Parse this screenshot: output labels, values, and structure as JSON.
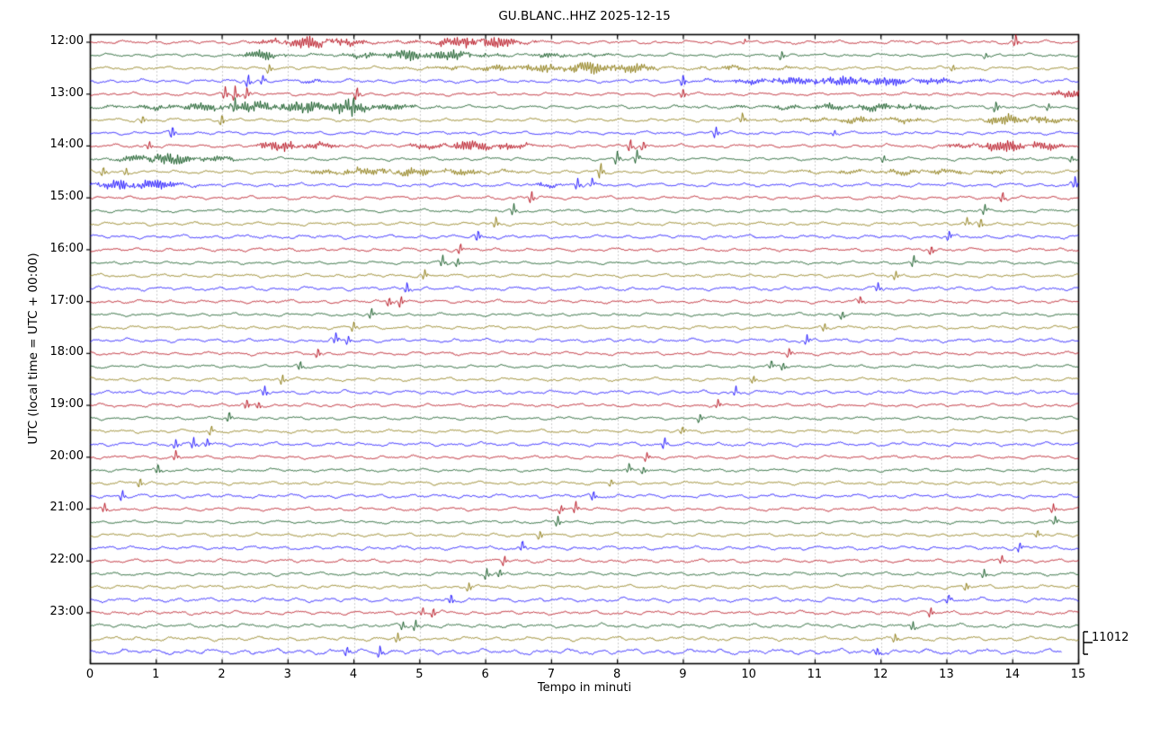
{
  "title": "GU.BLANC..HHZ 2025-12-15",
  "x_axis": {
    "label": "Tempo in minuti",
    "ticks": [
      "0",
      "1",
      "2",
      "3",
      "4",
      "5",
      "6",
      "7",
      "8",
      "9",
      "10",
      "11",
      "12",
      "13",
      "14",
      "15"
    ]
  },
  "y_axis": {
    "label": "UTC (local time = UTC + 00:00)",
    "hour_labels": [
      "12:00",
      "13:00",
      "14:00",
      "15:00",
      "16:00",
      "17:00",
      "18:00",
      "19:00",
      "20:00",
      "21:00",
      "22:00",
      "23:00"
    ]
  },
  "scale": {
    "value": "11012"
  },
  "chart_data": {
    "type": "line",
    "subtype": "helicorder_dayplot",
    "station_id": "GU.BLANC..HHZ",
    "date": "2025-12-15",
    "interval_minutes": 15,
    "x_range": [
      0,
      15
    ],
    "start_time": "12:00",
    "end_time": "24:00",
    "amplitude_scale_counts": 11012,
    "grid": "dotted-vertical-per-minute",
    "colors": {
      "red": "#b2000f",
      "green": "#004c12",
      "olive": "#847200",
      "blue": "#0e01ff"
    },
    "gridline_color": "#9a9a9a",
    "rows": [
      {
        "t": "12:00",
        "c": "red",
        "n": 1.2,
        "bursts": [
          [
            2.3,
            4.7,
            6.2,
            3.3
          ],
          [
            4.7,
            7.0,
            6.8,
            5.9
          ]
        ],
        "spikes": [
          [
            9.94,
            2.0
          ],
          [
            14.05,
            4.5
          ]
        ]
      },
      {
        "t": "12:15",
        "c": "green",
        "n": 1.1,
        "bursts": [
          [
            2.1,
            3.2,
            4.8,
            2.6
          ],
          [
            3.2,
            6.5,
            5.8,
            5.3
          ],
          [
            6.5,
            8.6,
            2.3,
            6.9
          ]
        ],
        "spikes": [
          [
            10.5,
            3.2
          ],
          [
            13.6,
            2.2
          ]
        ]
      },
      {
        "t": "12:30",
        "c": "olive",
        "n": 1.2,
        "bursts": [
          [
            4.3,
            9.0,
            5.6,
            8.1
          ],
          [
            9.0,
            11.6,
            2.2,
            9.4
          ]
        ],
        "spikes": [
          [
            2.72,
            3.2
          ],
          [
            13.1,
            2.6
          ]
        ]
      },
      {
        "t": "12:45",
        "c": "blue",
        "n": 1.3,
        "bursts": [
          [
            8.6,
            14.6,
            4.6,
            11.3
          ],
          [
            3.0,
            3.8,
            1.6,
            3.4
          ]
        ],
        "spikes": [
          [
            2.4,
            4.6
          ],
          [
            2.62,
            3.0
          ],
          [
            9.0,
            4.6
          ]
        ]
      },
      {
        "t": "13:00",
        "c": "red",
        "n": 1.1,
        "bursts": [
          [
            14.3,
            15.3,
            4.5,
            15.0
          ]
        ],
        "spikes": [
          [
            2.05,
            4.6
          ],
          [
            2.2,
            5.4
          ],
          [
            2.38,
            4.2
          ],
          [
            4.05,
            5.0
          ],
          [
            9.0,
            3.4
          ]
        ]
      },
      {
        "t": "13:15",
        "c": "green",
        "n": 1.2,
        "bursts": [
          [
            -0.5,
            5.4,
            6.6,
            3.8
          ],
          [
            8.4,
            13.4,
            3.2,
            12.3
          ]
        ],
        "spikes": [
          [
            2.2,
            4.0
          ],
          [
            4.0,
            5.5
          ],
          [
            13.75,
            4.2
          ],
          [
            14.55,
            2.6
          ]
        ]
      },
      {
        "t": "13:30",
        "c": "olive",
        "n": 1.2,
        "bursts": [
          [
            9.7,
            13.2,
            3.0,
            12.0
          ],
          [
            13.2,
            15.0,
            6.2,
            14.0
          ],
          [
            14.6,
            15.4,
            3.0,
            15.0
          ]
        ],
        "spikes": [
          [
            0.8,
            3.0
          ],
          [
            2.0,
            4.2
          ],
          [
            9.9,
            3.6
          ]
        ]
      },
      {
        "t": "13:45",
        "c": "blue",
        "n": 1.2,
        "spikes": [
          [
            1.25,
            4.6
          ],
          [
            9.5,
            4.0
          ],
          [
            11.3,
            2.2
          ]
        ]
      },
      {
        "t": "14:00",
        "c": "red",
        "n": 1.2,
        "bursts": [
          [
            2.35,
            4.3,
            5.0,
            2.8
          ],
          [
            4.3,
            7.4,
            4.6,
            5.8
          ],
          [
            12.6,
            15.3,
            5.6,
            14.0
          ]
        ],
        "spikes": [
          [
            0.9,
            3.0
          ],
          [
            8.2,
            4.6
          ],
          [
            8.4,
            3.6
          ]
        ]
      },
      {
        "t": "14:15",
        "c": "green",
        "n": 1.15,
        "bursts": [
          [
            0.1,
            2.6,
            5.4,
            1.0
          ]
        ],
        "spikes": [
          [
            8.0,
            5.0
          ],
          [
            8.3,
            4.4
          ],
          [
            12.05,
            2.6
          ],
          [
            14.9,
            2.4
          ]
        ]
      },
      {
        "t": "14:30",
        "c": "olive",
        "n": 1.25,
        "bursts": [
          [
            2.5,
            7.4,
            4.0,
            4.5
          ],
          [
            9.5,
            15.3,
            2.4,
            12.8
          ]
        ],
        "spikes": [
          [
            0.2,
            3.6
          ],
          [
            0.55,
            3.0
          ],
          [
            7.75,
            5.6
          ]
        ]
      },
      {
        "t": "14:45",
        "c": "blue",
        "n": 1.3,
        "bursts": [
          [
            -0.4,
            1.9,
            5.2,
            0.7
          ],
          [
            6.5,
            7.3,
            2.0,
            6.9
          ]
        ],
        "spikes": [
          [
            7.4,
            4.2
          ],
          [
            7.62,
            3.2
          ],
          [
            14.95,
            4.4
          ]
        ]
      },
      {
        "t": "15:00",
        "c": "red",
        "n": 1.2,
        "spikes": [
          [
            6.7,
            4.4
          ],
          [
            13.85,
            3.8
          ]
        ]
      },
      {
        "t": "15:15",
        "c": "green",
        "n": 1.1,
        "spikes": [
          [
            6.43,
            4.0
          ],
          [
            13.58,
            3.4
          ]
        ]
      },
      {
        "t": "15:30",
        "c": "olive",
        "n": 1.2,
        "spikes": [
          [
            6.16,
            4.0
          ],
          [
            13.31,
            3.2
          ],
          [
            13.52,
            3.8
          ]
        ]
      },
      {
        "t": "15:45",
        "c": "blue",
        "n": 1.35,
        "spikes": [
          [
            5.89,
            4.4
          ],
          [
            13.04,
            3.9
          ]
        ]
      },
      {
        "t": "16:00",
        "c": "red",
        "n": 1.2,
        "spikes": [
          [
            5.62,
            4.0
          ],
          [
            12.77,
            3.5
          ]
        ]
      },
      {
        "t": "16:15",
        "c": "green",
        "n": 1.1,
        "spikes": [
          [
            5.35,
            4.1
          ],
          [
            5.58,
            3.1
          ],
          [
            12.5,
            3.9
          ]
        ]
      },
      {
        "t": "16:30",
        "c": "olive",
        "n": 1.2,
        "spikes": [
          [
            5.08,
            3.6
          ],
          [
            12.23,
            3.1
          ]
        ]
      },
      {
        "t": "16:45",
        "c": "blue",
        "n": 1.35,
        "spikes": [
          [
            4.81,
            4.1
          ],
          [
            11.96,
            3.5
          ]
        ]
      },
      {
        "t": "17:00",
        "c": "red",
        "n": 1.2,
        "spikes": [
          [
            4.54,
            3.5
          ],
          [
            4.72,
            4.2
          ],
          [
            11.69,
            3.2
          ]
        ]
      },
      {
        "t": "17:15",
        "c": "green",
        "n": 1.1,
        "spikes": [
          [
            4.27,
            3.8
          ],
          [
            11.42,
            3.3
          ]
        ]
      },
      {
        "t": "17:30",
        "c": "olive",
        "n": 1.2,
        "spikes": [
          [
            4.0,
            3.6
          ],
          [
            11.15,
            3.0
          ]
        ]
      },
      {
        "t": "17:45",
        "c": "blue",
        "n": 1.35,
        "spikes": [
          [
            3.73,
            4.0
          ],
          [
            3.92,
            3.2
          ],
          [
            10.88,
            3.6
          ]
        ]
      },
      {
        "t": "18:00",
        "c": "red",
        "n": 1.2,
        "spikes": [
          [
            3.46,
            3.7
          ],
          [
            10.61,
            3.2
          ]
        ]
      },
      {
        "t": "18:15",
        "c": "green",
        "n": 1.1,
        "spikes": [
          [
            3.19,
            3.9
          ],
          [
            10.34,
            3.4
          ],
          [
            10.52,
            3.0
          ]
        ]
      },
      {
        "t": "18:30",
        "c": "olive",
        "n": 1.2,
        "spikes": [
          [
            2.92,
            3.5
          ],
          [
            10.07,
            3.0
          ]
        ]
      },
      {
        "t": "18:45",
        "c": "blue",
        "n": 1.35,
        "spikes": [
          [
            2.65,
            3.9
          ],
          [
            9.8,
            3.4
          ]
        ]
      },
      {
        "t": "19:00",
        "c": "red",
        "n": 1.2,
        "spikes": [
          [
            2.38,
            3.5
          ],
          [
            2.56,
            3.0
          ],
          [
            9.53,
            3.1
          ]
        ]
      },
      {
        "t": "19:15",
        "c": "green",
        "n": 1.1,
        "spikes": [
          [
            2.11,
            3.8
          ],
          [
            9.26,
            3.3
          ]
        ]
      },
      {
        "t": "19:30",
        "c": "olive",
        "n": 1.2,
        "spikes": [
          [
            1.84,
            3.5
          ],
          [
            8.99,
            3.0
          ]
        ]
      },
      {
        "t": "19:45",
        "c": "blue",
        "n": 1.35,
        "spikes": [
          [
            1.3,
            3.4
          ],
          [
            1.57,
            4.2
          ],
          [
            1.78,
            3.2
          ],
          [
            8.72,
            3.6
          ]
        ]
      },
      {
        "t": "20:00",
        "c": "red",
        "n": 1.2,
        "spikes": [
          [
            1.3,
            3.6
          ],
          [
            8.45,
            3.1
          ]
        ]
      },
      {
        "t": "20:15",
        "c": "green",
        "n": 1.1,
        "spikes": [
          [
            1.03,
            3.8
          ],
          [
            8.18,
            3.4
          ],
          [
            8.4,
            3.0
          ]
        ]
      },
      {
        "t": "20:30",
        "c": "olive",
        "n": 1.2,
        "spikes": [
          [
            0.76,
            3.5
          ],
          [
            7.91,
            3.0
          ]
        ]
      },
      {
        "t": "20:45",
        "c": "blue",
        "n": 1.35,
        "spikes": [
          [
            0.49,
            3.9
          ],
          [
            7.64,
            3.5
          ]
        ]
      },
      {
        "t": "21:00",
        "c": "red",
        "n": 1.2,
        "spikes": [
          [
            0.22,
            3.4
          ],
          [
            7.37,
            4.0
          ],
          [
            7.15,
            3.2
          ],
          [
            14.62,
            3.4
          ]
        ]
      },
      {
        "t": "21:15",
        "c": "green",
        "n": 1.1,
        "spikes": [
          [
            7.1,
            3.8
          ],
          [
            14.65,
            3.2
          ]
        ]
      },
      {
        "t": "21:30",
        "c": "olive",
        "n": 1.2,
        "spikes": [
          [
            6.83,
            3.5
          ],
          [
            14.38,
            3.0
          ]
        ]
      },
      {
        "t": "21:45",
        "c": "blue",
        "n": 1.35,
        "spikes": [
          [
            6.56,
            3.9
          ],
          [
            14.11,
            3.4
          ]
        ]
      },
      {
        "t": "22:00",
        "c": "red",
        "n": 1.25,
        "spikes": [
          [
            6.29,
            3.6
          ],
          [
            13.84,
            3.2
          ]
        ]
      },
      {
        "t": "22:15",
        "c": "green",
        "n": 1.2,
        "spikes": [
          [
            6.02,
            3.8
          ],
          [
            6.22,
            3.0
          ],
          [
            13.57,
            3.3
          ]
        ]
      },
      {
        "t": "22:30",
        "c": "olive",
        "n": 1.3,
        "spikes": [
          [
            5.75,
            3.5
          ],
          [
            13.3,
            3.0
          ]
        ]
      },
      {
        "t": "22:45",
        "c": "blue",
        "n": 1.5,
        "spikes": [
          [
            5.48,
            3.9
          ],
          [
            13.03,
            3.5
          ]
        ]
      },
      {
        "t": "23:00",
        "c": "red",
        "n": 1.35,
        "spikes": [
          [
            5.21,
            3.7
          ],
          [
            5.05,
            3.0
          ],
          [
            12.76,
            3.3
          ]
        ]
      },
      {
        "t": "23:15",
        "c": "green",
        "n": 1.4,
        "spikes": [
          [
            4.75,
            3.0
          ],
          [
            4.94,
            3.8
          ],
          [
            12.49,
            3.2
          ]
        ]
      },
      {
        "t": "23:30",
        "c": "olive",
        "n": 1.45,
        "spikes": [
          [
            4.67,
            3.5
          ],
          [
            12.22,
            3.0
          ]
        ]
      },
      {
        "t": "23:45",
        "c": "blue",
        "n": 1.85,
        "end": 14.75,
        "spikes": [
          [
            3.9,
            3.4
          ],
          [
            4.4,
            4.1
          ],
          [
            11.95,
            3.6
          ]
        ]
      }
    ]
  }
}
